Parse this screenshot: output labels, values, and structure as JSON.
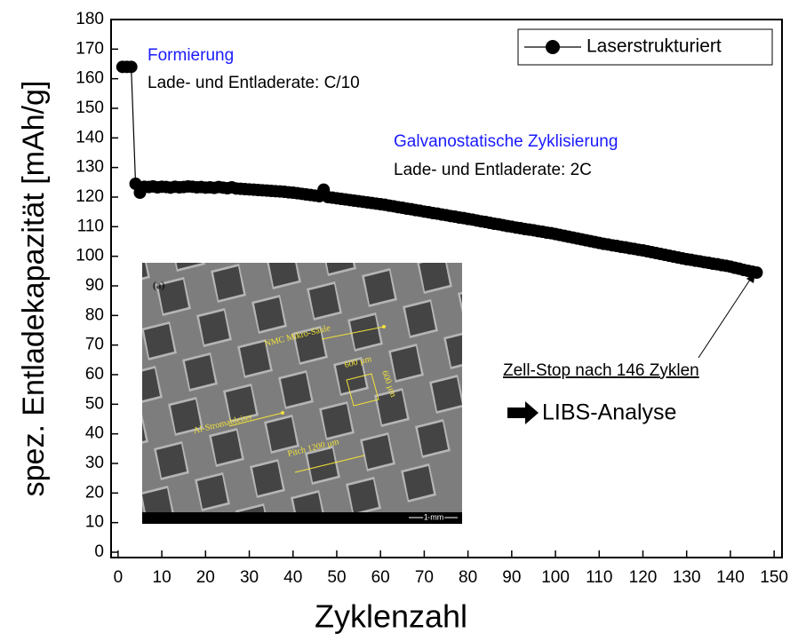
{
  "chart_data": {
    "type": "line",
    "x_label": "Zyklenzahl",
    "y_label": "spez. Entladekapazität [mAh/g]",
    "xlim": [
      -1.6,
      151.8
    ],
    "ylim": [
      0,
      180
    ],
    "xticks": [
      0,
      10,
      20,
      30,
      40,
      50,
      60,
      70,
      80,
      90,
      100,
      110,
      120,
      130,
      140,
      150
    ],
    "yticks": [
      0,
      10,
      20,
      30,
      40,
      50,
      60,
      70,
      80,
      90,
      100,
      110,
      120,
      130,
      140,
      150,
      160,
      170,
      180
    ],
    "legend_position": "upper right",
    "series": [
      {
        "name": "Laserstrukturiert",
        "color": "#000000",
        "x": [
          1,
          2,
          3,
          4,
          5,
          6,
          7,
          8,
          9,
          10,
          11,
          12,
          13,
          14,
          15,
          16,
          17,
          18,
          19,
          20,
          21,
          22,
          23,
          24,
          25,
          26,
          27,
          28,
          29,
          30,
          31,
          32,
          33,
          34,
          35,
          36,
          37,
          38,
          39,
          40,
          41,
          42,
          43,
          44,
          45,
          46,
          47,
          48,
          49,
          50,
          51,
          52,
          53,
          54,
          55,
          56,
          57,
          58,
          59,
          60,
          61,
          62,
          63,
          64,
          65,
          66,
          67,
          68,
          69,
          70,
          71,
          72,
          73,
          74,
          75,
          76,
          77,
          78,
          79,
          80,
          81,
          82,
          83,
          84,
          85,
          86,
          87,
          88,
          89,
          90,
          91,
          92,
          93,
          94,
          95,
          96,
          97,
          98,
          99,
          100,
          101,
          102,
          103,
          104,
          105,
          106,
          107,
          108,
          109,
          110,
          111,
          112,
          113,
          114,
          115,
          116,
          117,
          118,
          119,
          120,
          121,
          122,
          123,
          124,
          125,
          126,
          127,
          128,
          129,
          130,
          131,
          132,
          133,
          134,
          135,
          136,
          137,
          138,
          139,
          140,
          141,
          142,
          143,
          144,
          145,
          146
        ],
        "values": [
          164,
          164,
          164,
          124.5,
          121.5,
          123.5,
          123.4,
          123.6,
          123.3,
          123.5,
          123.4,
          123.2,
          123.5,
          123.3,
          123.4,
          123.6,
          123.5,
          123.3,
          123.4,
          123.2,
          123.3,
          123.1,
          123.4,
          123.2,
          123.0,
          123.3,
          122.9,
          122.8,
          122.7,
          122.6,
          122.5,
          122.4,
          122.3,
          122.2,
          122.1,
          122.0,
          121.9,
          121.8,
          121.6,
          121.5,
          121.3,
          121.1,
          120.9,
          120.7,
          120.5,
          120.3,
          122.5,
          120.0,
          119.8,
          119.6,
          119.4,
          119.2,
          119.0,
          118.8,
          118.6,
          118.4,
          118.2,
          118.0,
          117.8,
          117.6,
          117.4,
          117.1,
          116.9,
          116.6,
          116.4,
          116.1,
          115.9,
          115.6,
          115.4,
          115.1,
          114.9,
          114.6,
          114.4,
          114.1,
          113.9,
          113.6,
          113.4,
          113.1,
          112.9,
          112.6,
          112.4,
          112.1,
          111.8,
          111.6,
          111.3,
          111.0,
          110.8,
          110.5,
          110.2,
          110.0,
          109.7,
          109.5,
          109.2,
          109.0,
          108.8,
          108.5,
          108.3,
          108.0,
          107.8,
          107.5,
          107.2,
          106.9,
          106.6,
          106.3,
          106.0,
          105.7,
          105.4,
          105.1,
          104.8,
          104.5,
          104.2,
          104.0,
          103.7,
          103.5,
          103.2,
          103.0,
          102.7,
          102.5,
          102.2,
          102.0,
          101.7,
          101.4,
          101.1,
          100.8,
          100.5,
          100.2,
          99.9,
          99.6,
          99.3,
          99.0,
          98.8,
          98.5,
          98.3,
          98.0,
          97.8,
          97.5,
          97.3,
          97.0,
          96.8,
          96.5,
          96.1,
          95.8,
          95.4,
          95.1,
          94.8,
          94.5
        ]
      }
    ],
    "annotations": {
      "formation_title": "Formierung",
      "formation_rate": "Lade- und Entladerate: C/10",
      "cycling_title": "Galvanostatische Zyklisierung",
      "cycling_rate": "Lade- und Entladerate: 2C",
      "stop": "Zell-Stop nach 146 Zyklen",
      "analysis": "LIBS-Analyse"
    },
    "inset": {
      "panel": "(a)",
      "pillar": "NMC Mikro-Säule",
      "width": "600 µm",
      "height": "600 µm",
      "collector": "Al-Stromableiter",
      "pitch": "Pitch 1200 µm",
      "scale": "1 mm"
    }
  }
}
